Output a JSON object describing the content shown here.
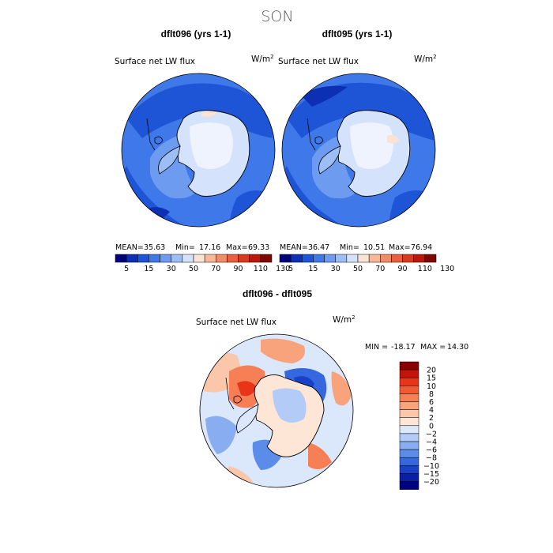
{
  "chart_data": {
    "type": "polar-contour-map",
    "title": "SON",
    "panels": [
      {
        "id": "left",
        "heading": "dflt096 (yrs 1-1)",
        "variable": "Surface net LW flux",
        "units": "W/m",
        "units_exp": "2",
        "stats": {
          "mean_label": "MEAN=",
          "mean": "35.63",
          "min_label": "Min=",
          "min": "17.16",
          "max_label": "Max=",
          "max": "69.33"
        },
        "colorbar": {
          "ticks": [
            "5",
            "15",
            "30",
            "50",
            "70",
            "90",
            "110",
            "130"
          ],
          "colors": [
            "#00007a",
            "#0c2fb4",
            "#1e54d6",
            "#3f78e8",
            "#6c9bf0",
            "#9dbdf5",
            "#d4e2fb",
            "#fbe3d3",
            "#f7b89a",
            "#f28b68",
            "#e8603f",
            "#d73a1f",
            "#b71a0c",
            "#7c0a02"
          ]
        }
      },
      {
        "id": "right",
        "heading": "dflt095 (yrs 1-1)",
        "variable": "Surface net LW flux",
        "units": "W/m",
        "units_exp": "2",
        "stats": {
          "mean_label": "MEAN=",
          "mean": "36.47",
          "min_label": "Min=",
          "min": "10.51",
          "max_label": "Max=",
          "max": "76.94"
        },
        "colorbar": {
          "ticks": [
            "5",
            "15",
            "30",
            "50",
            "70",
            "90",
            "110",
            "130"
          ],
          "colors": [
            "#00007a",
            "#0c2fb4",
            "#1e54d6",
            "#3f78e8",
            "#6c9bf0",
            "#9dbdf5",
            "#d4e2fb",
            "#fbe3d3",
            "#f7b89a",
            "#f28b68",
            "#e8603f",
            "#d73a1f",
            "#b71a0c",
            "#7c0a02"
          ]
        }
      },
      {
        "id": "diff",
        "heading": "dflt096 - dflt095",
        "variable": "Surface net LW flux",
        "units": "W/m",
        "units_exp": "2",
        "stats": {
          "min_label": "MIN =",
          "min": "-18.17",
          "max_label": "MAX =",
          "max": "14.30"
        },
        "colorbar": {
          "ticks": [
            "20",
            "15",
            "10",
            "8",
            "6",
            "4",
            "2",
            "0",
            "−2",
            "−4",
            "−6",
            "−8",
            "−10",
            "−15",
            "−20"
          ],
          "colors": [
            "#8a0000",
            "#c4140a",
            "#e8351a",
            "#f25a34",
            "#f67f55",
            "#f9a37c",
            "#fbc7aa",
            "#fde6d6",
            "#dbe7fb",
            "#b3cbf7",
            "#88adf1",
            "#5c8cea",
            "#3567de",
            "#1a40c8",
            "#0a1fa3",
            "#000080"
          ]
        }
      }
    ]
  }
}
